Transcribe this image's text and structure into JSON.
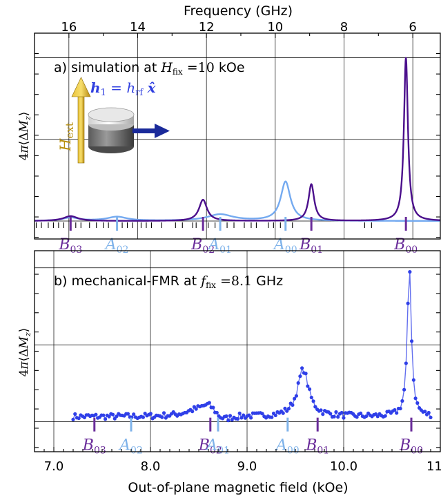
{
  "colors": {
    "simulation_dark": "#4b0f8c",
    "simulation_light": "#74aaf0",
    "experiment": "#2f3fe8",
    "mode_dark": "#6a2c9a",
    "mode_light": "#7fb3ea",
    "hext_arrow": "#d9a81a",
    "h1_arrow": "#1a2a9a",
    "h1_text": "#3140e0"
  },
  "axes": {
    "top_title": "Frequency (GHz)",
    "top_ticks": [
      "16",
      "14",
      "12",
      "10",
      "8",
      "6"
    ],
    "bottom_title": "Out-of-plane magnetic field (kOe)",
    "bottom_ticks": [
      "7.0",
      "8.0",
      "9.0",
      "10.0",
      "11.0"
    ],
    "ylabel": "4π⟨ΔM_z⟩"
  },
  "chart_data": [
    {
      "type": "line",
      "panel": "a",
      "title": "a) simulation at H_fix = 10 kOe",
      "xlabel": "Frequency (GHz)",
      "ylabel": "4π⟨ΔM_z⟩",
      "xlim": [
        17.0,
        5.2
      ],
      "x_ticks": [
        16,
        14,
        12,
        10,
        8,
        6
      ],
      "ylim": [
        -0.22,
        2.3
      ],
      "grid": true,
      "series": [
        {
          "peaks": [
            [
              15.95,
              0.06,
              0.25
            ],
            [
              12.1,
              0.26,
              0.14
            ],
            [
              8.95,
              0.45,
              0.1
            ],
            [
              6.2,
              2.0,
              0.07
            ]
          ]
        },
        {
          "peaks": [
            [
              15.95,
              0.04,
              0.28
            ],
            [
              14.6,
              0.05,
              0.35
            ],
            [
              11.6,
              0.08,
              0.45
            ],
            [
              9.7,
              0.48,
              0.17
            ]
          ]
        }
      ],
      "mode_markers": [
        {
          "label": "B_03",
          "x": 15.95,
          "family": "B"
        },
        {
          "label": "A_02",
          "x": 14.6,
          "family": "A"
        },
        {
          "label": "B_02",
          "x": 12.1,
          "family": "B"
        },
        {
          "label": "A_01",
          "x": 11.6,
          "family": "A"
        },
        {
          "label": "A_00",
          "x": 9.7,
          "family": "A"
        },
        {
          "label": "B_01",
          "x": 8.95,
          "family": "B"
        },
        {
          "label": "B_00",
          "x": 6.2,
          "family": "B"
        }
      ],
      "minor_mode_ticks": [
        16.95,
        16.8,
        16.6,
        16.45,
        16.3,
        16.15,
        15.8,
        15.65,
        15.4,
        15.2,
        15.0,
        14.85,
        14.45,
        14.3,
        14.15,
        13.9,
        13.75,
        13.6,
        13.3,
        12.9,
        12.7,
        12.4,
        12.3,
        11.95,
        11.75,
        11.4,
        11.2,
        10.9,
        10.7,
        10.55,
        10.2,
        10.05,
        9.85,
        9.5,
        7.4,
        7.2
      ],
      "inset": {
        "h1_label": "h₁ = h_rf x̂",
        "hext_label": "H_ext"
      }
    },
    {
      "type": "scatter",
      "panel": "b",
      "title": "b) mechanical-FMR at f_fix = 8.1 GHz",
      "xlabel": "Out-of-plane magnetic field (kOe)",
      "ylabel": "4π⟨ΔM_z⟩",
      "xlim": [
        6.8,
        11.0
      ],
      "x_ticks": [
        7.0,
        8.0,
        9.0,
        10.0,
        11.0
      ],
      "ylim": [
        -0.35,
        2.0
      ],
      "grid": true,
      "series": [
        {
          "x_range": [
            7.2,
            10.9
          ],
          "n_points": 190,
          "baseline": 0.06,
          "peaks": [
            [
              8.6,
              0.13,
              0.1
            ],
            [
              8.45,
              0.05,
              0.15
            ],
            [
              9.58,
              0.55,
              0.07
            ],
            [
              10.68,
              1.75,
              0.025
            ]
          ],
          "dip": [
            8.75,
            -0.07,
            0.1
          ]
        }
      ],
      "mode_markers": [
        {
          "label": "B_03",
          "x": 7.42,
          "family": "B"
        },
        {
          "label": "A_02",
          "x": 7.8,
          "family": "A"
        },
        {
          "label": "B_02",
          "x": 8.62,
          "family": "B"
        },
        {
          "label": "A_01",
          "x": 8.7,
          "family": "A"
        },
        {
          "label": "A_00",
          "x": 9.42,
          "family": "A"
        },
        {
          "label": "B_01",
          "x": 9.73,
          "family": "B"
        },
        {
          "label": "B_00",
          "x": 10.7,
          "family": "B"
        }
      ]
    }
  ]
}
